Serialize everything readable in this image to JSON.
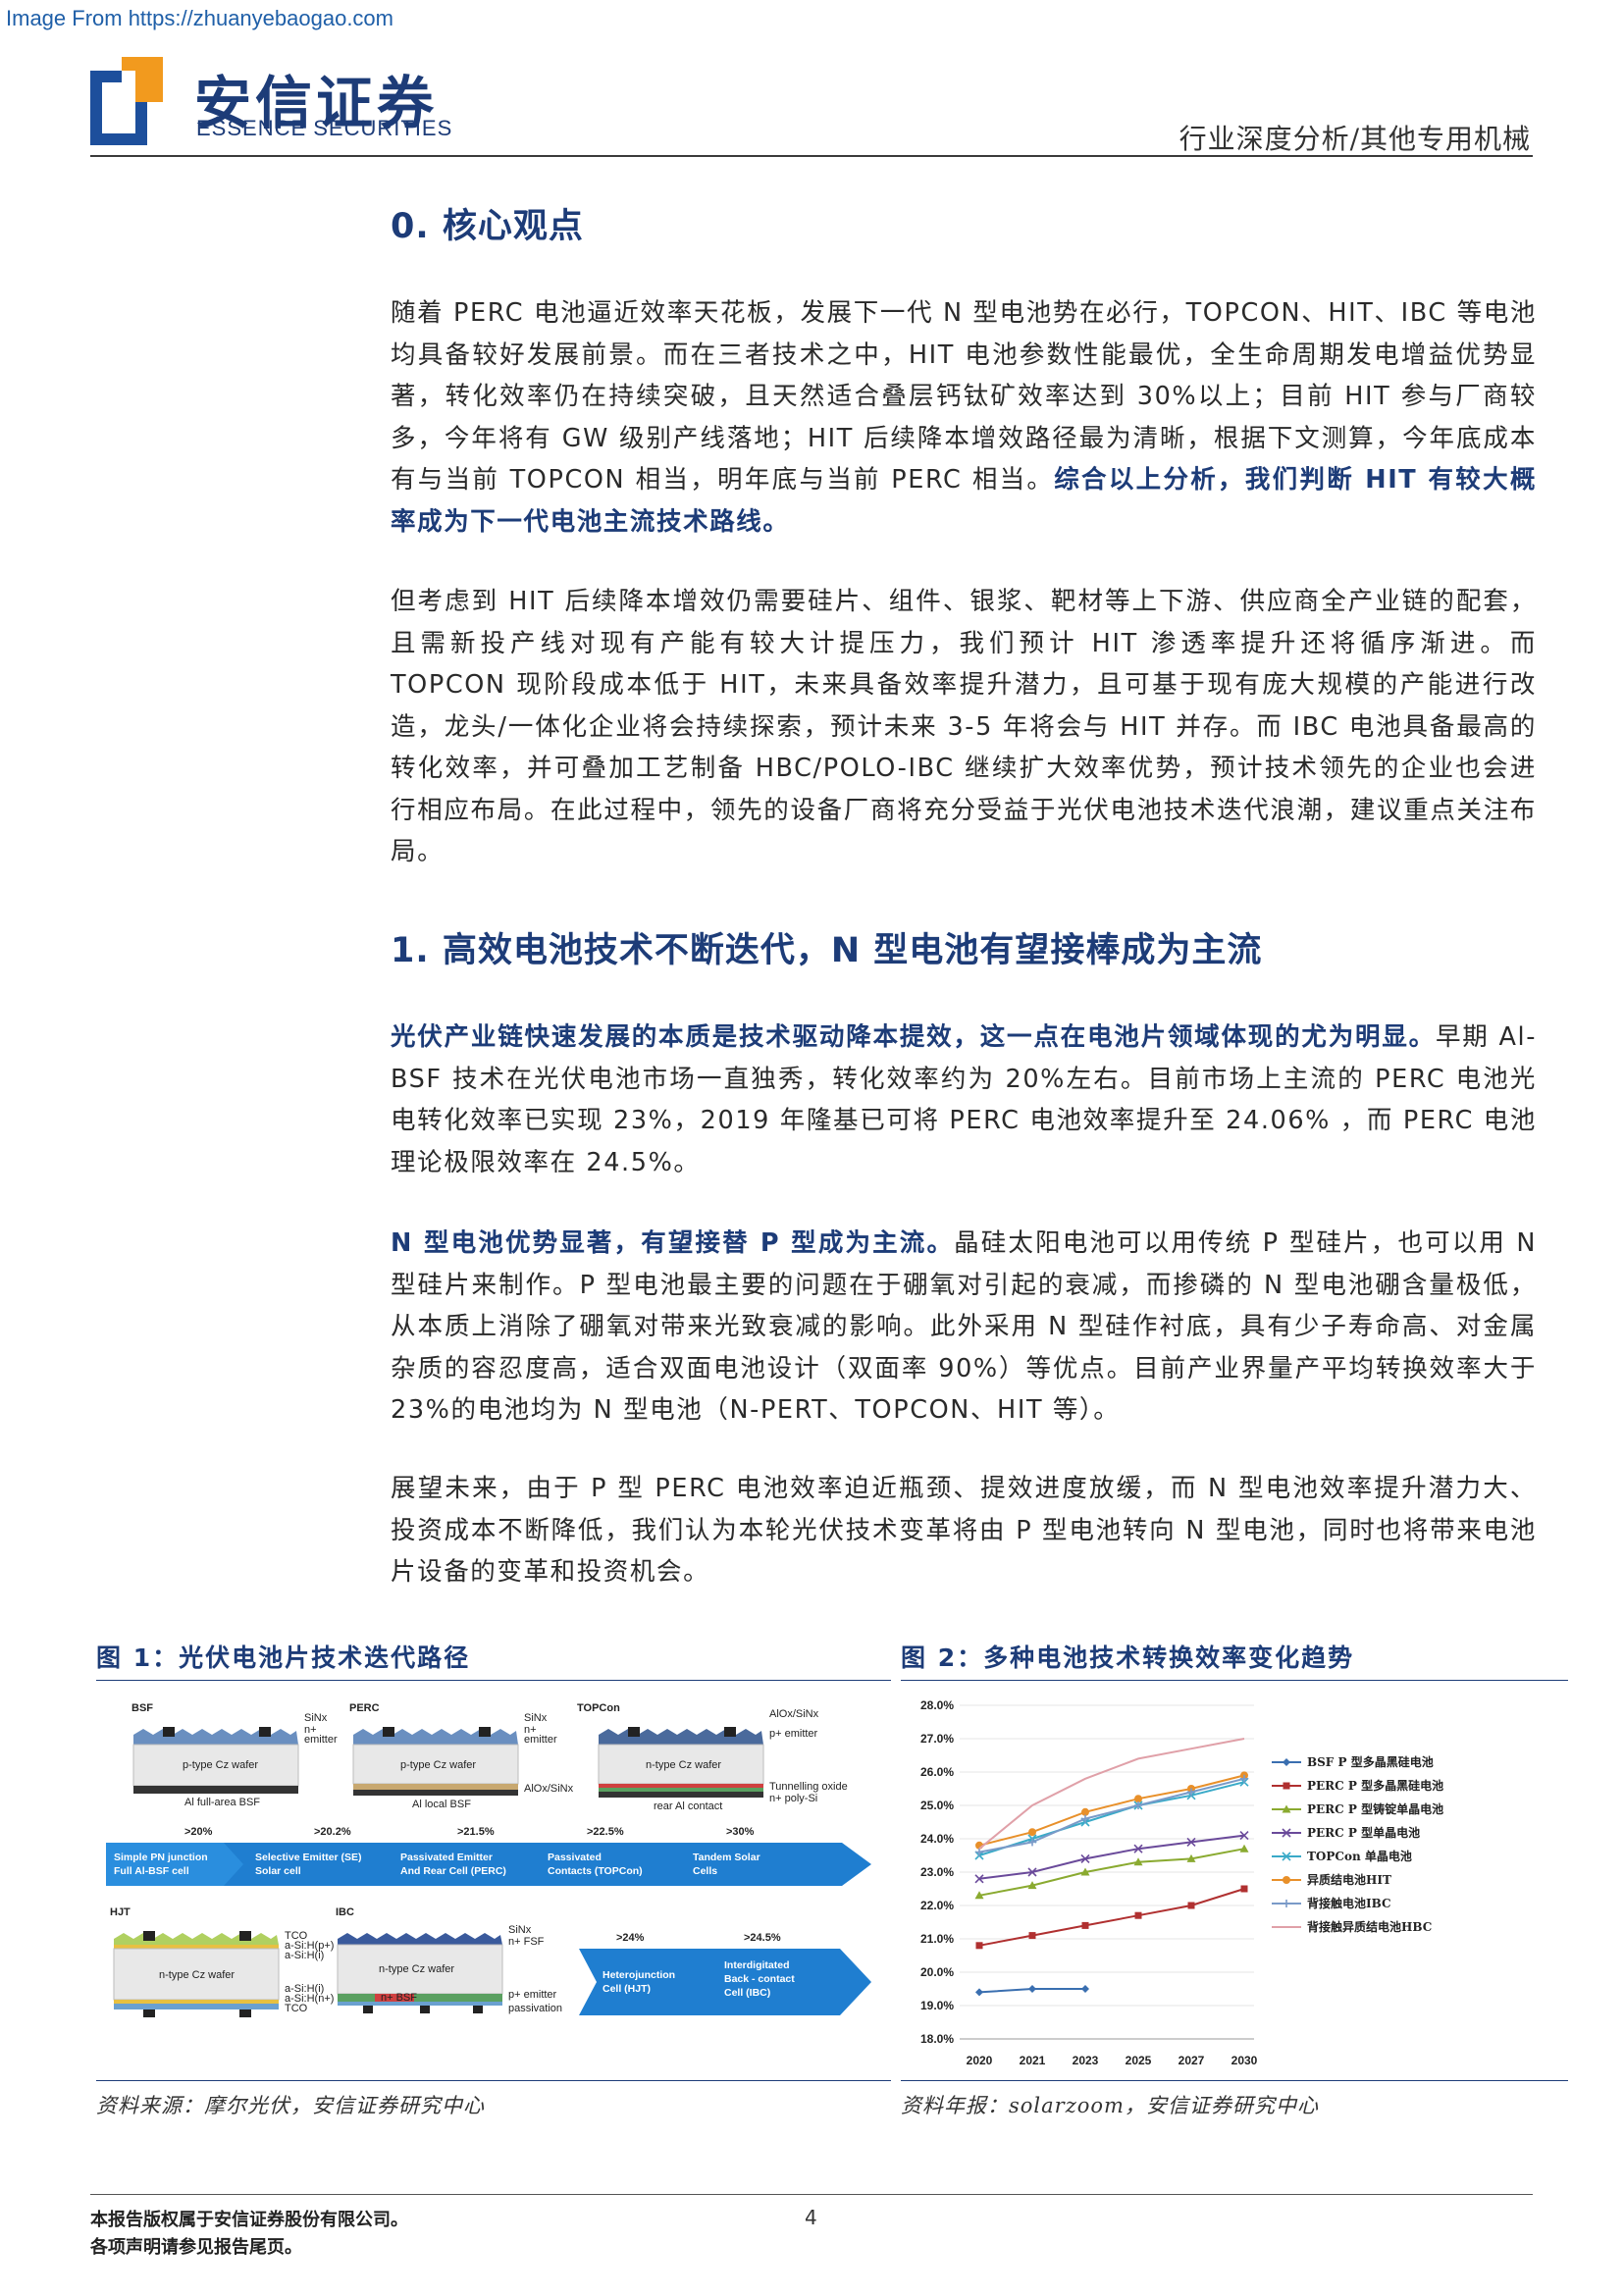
{
  "watermark": "Image From https://zhuanyebaogao.com",
  "logo": {
    "cn": "安信证券",
    "en": "ESSENCE SECURITIES"
  },
  "header": {
    "category": "行业深度分析/其他专用机械"
  },
  "section0": {
    "title": "0. 核心观点",
    "p1_plain": "随着 PERC 电池逼近效率天花板，发展下一代 N 型电池势在必行，TOPCON、HIT、IBC 等电池均具备较好发展前景。而在三者技术之中，HIT 电池参数性能最优，全生命周期发电增益优势显著，转化效率仍在持续突破，且天然适合叠层钙钛矿效率达到 30%以上；目前 HIT 参与厂商较多，今年将有 GW 级别产线落地；HIT 后续降本增效路径最为清晰，根据下文测算，今年底成本有与当前 TOPCON 相当，明年底与当前 PERC 相当。",
    "p1_bold": "综合以上分析，我们判断 HIT 有较大概率成为下一代电池主流技术路线。",
    "p2": "但考虑到 HIT 后续降本增效仍需要硅片、组件、银浆、靶材等上下游、供应商全产业链的配套，且需新投产线对现有产能有较大计提压力，我们预计 HIT 渗透率提升还将循序渐进。而 TOPCON 现阶段成本低于 HIT，未来具备效率提升潜力，且可基于现有庞大规模的产能进行改造，龙头/一体化企业将会持续探索，预计未来 3-5 年将会与 HIT 并存。而 IBC 电池具备最高的转化效率，并可叠加工艺制备 HBC/POLO-IBC 继续扩大效率优势，预计技术领先的企业也会进行相应布局。在此过程中，领先的设备厂商将充分受益于光伏电池技术迭代浪潮，建议重点关注布局。"
  },
  "section1": {
    "title": "1. 高效电池技术不断迭代，N 型电池有望接棒成为主流",
    "p1_bold": "光伏产业链快速发展的本质是技术驱动降本提效，这一点在电池片领域体现的尤为明显。",
    "p1_plain": "早期 Al-BSF 技术在光伏电池市场一直独秀，转化效率约为 20%左右。目前市场上主流的 PERC 电池光电转化效率已实现 23%，2019 年隆基已可将 PERC 电池效率提升至 24.06% ，而 PERC 电池理论极限效率在 24.5%。",
    "p2_bold": "N 型电池优势显著，有望接替 P 型成为主流。",
    "p2_plain": "晶硅太阳电池可以用传统 P 型硅片，也可以用 N 型硅片来制作。P 型电池最主要的问题在于硼氧对引起的衰减，而掺磷的 N 型电池硼含量极低，从本质上消除了硼氧对带来光致衰减的影响。此外采用 N 型硅作衬底，具有少子寿命高、对金属杂质的容忍度高，适合双面电池设计（双面率 90%）等优点。目前产业界量产平均转换效率大于 23%的电池均为 N 型电池（N-PERT、TOPCON、HIT 等）。",
    "p3": "展望未来，由于 P 型 PERC 电池效率迫近瓶颈、提效进度放缓，而 N 型电池效率提升潜力大、投资成本不断降低，我们认为本轮光伏技术变革将由 P 型电池转向 N 型电池，同时也将带来电池片设备的变革和投资机会。"
  },
  "fig1": {
    "title": "图 1：光伏电池片技术迭代路径",
    "source": "资料来源：摩尔光伏，安信证券研究中心",
    "cells": [
      {
        "name": "BSF",
        "wafer": "p-type Cz wafer",
        "bottom": "Al full-area BSF",
        "tags": [
          "SiNx",
          "n+",
          "emitter"
        ]
      },
      {
        "name": "PERC",
        "wafer": "p-type Cz wafer",
        "bottom": "Al local BSF",
        "tags": [
          "SiNx",
          "n+",
          "emitter",
          "AlOx/SiNx"
        ]
      },
      {
        "name": "TOPCon",
        "wafer": "n-type Cz wafer",
        "bottom": "rear Al contact",
        "tags": [
          "AlOx/SiNx",
          "p+ emitter",
          "Tunnelling oxide",
          "n+ poly-Si"
        ]
      },
      {
        "name": "HJT",
        "wafer": "n-type Cz wafer",
        "tags": [
          "TCO",
          "a-Si:H(p+)",
          "a-Si:H(i)",
          "a-Si:H(i)",
          "a-Si:H(n+)",
          "TCO"
        ]
      },
      {
        "name": "IBC",
        "wafer": "n-type Cz wafer",
        "tags": [
          "SiNx",
          "n+ FSF",
          "p+ emitter",
          "passivation"
        ],
        "inner": "n+ BSF"
      }
    ],
    "stages_row1": [
      {
        "eff": ">20%",
        "label": [
          "Simple PN junction",
          "Full Al-BSF cell"
        ]
      },
      {
        "eff": ">20.2%",
        "label": [
          "Selective Emitter (SE)",
          "Solar cell"
        ]
      },
      {
        "eff": ">21.5%",
        "label": [
          "Passivated Emitter",
          "And Rear Cell (PERC)"
        ]
      },
      {
        "eff": ">22.5%",
        "label": [
          "Passivated",
          "Contacts (TOPCon)"
        ]
      },
      {
        "eff": ">30%",
        "label": [
          "Tandem Solar",
          "Cells"
        ]
      }
    ],
    "stages_row2": [
      {
        "eff": ">24%",
        "label": [
          "Heterojunction",
          "Cell (HJT)"
        ]
      },
      {
        "eff": ">24.5%",
        "label": [
          "Interdigitated",
          "Back - contact",
          "Cell (IBC)"
        ]
      }
    ]
  },
  "fig2": {
    "title": "图 2：多种电池技术转换效率变化趋势",
    "source": "资料年报：solarzoom，安信证券研究中心"
  },
  "chart_data": {
    "type": "line",
    "categories": [
      "2020",
      "2021",
      "2023",
      "2025",
      "2027",
      "2030"
    ],
    "ylim": [
      18.0,
      28.0
    ],
    "yticks": [
      "18.0%",
      "19.0%",
      "20.0%",
      "21.0%",
      "22.0%",
      "23.0%",
      "24.0%",
      "25.0%",
      "26.0%",
      "27.0%",
      "28.0%"
    ],
    "legend_position": "right",
    "series": [
      {
        "name": "BSF P 型多晶黑硅电池",
        "color": "#3a6fb0",
        "marker": "diamond",
        "values": [
          19.4,
          19.5,
          19.5,
          null,
          null,
          null
        ]
      },
      {
        "name": "PERC P 型多晶黑硅电池",
        "color": "#b03030",
        "marker": "square",
        "values": [
          20.8,
          21.1,
          21.4,
          21.7,
          22.0,
          22.5
        ]
      },
      {
        "name": "PERC P 型铸锭单晶电池",
        "color": "#8aaa30",
        "marker": "triangle",
        "values": [
          22.3,
          22.6,
          23.0,
          23.3,
          23.4,
          23.7
        ]
      },
      {
        "name": "PERC P 型单晶电池",
        "color": "#6a4a9a",
        "marker": "x",
        "values": [
          22.8,
          23.0,
          23.4,
          23.7,
          23.9,
          24.1
        ]
      },
      {
        "name": "TOPCon 单晶电池",
        "color": "#3aaac8",
        "marker": "x",
        "values": [
          23.5,
          24.0,
          24.5,
          25.0,
          25.3,
          25.7
        ]
      },
      {
        "name": "异质结电池HIT",
        "color": "#e8902a",
        "marker": "circle",
        "values": [
          23.8,
          24.2,
          24.8,
          25.2,
          25.5,
          25.9
        ]
      },
      {
        "name": "背接触电池IBC",
        "color": "#7a9ac8",
        "marker": "plus",
        "values": [
          23.6,
          23.9,
          24.6,
          25.0,
          25.4,
          25.8
        ]
      },
      {
        "name": "背接触异质结电池HBC",
        "color": "#e0a0a8",
        "marker": "none",
        "values": [
          23.7,
          25.0,
          25.8,
          26.4,
          26.7,
          27.0
        ]
      }
    ]
  },
  "footer": {
    "line1": "本报告版权属于安信证券股份有限公司。",
    "line2": "各项声明请参见报告尾页。",
    "page": "4"
  }
}
